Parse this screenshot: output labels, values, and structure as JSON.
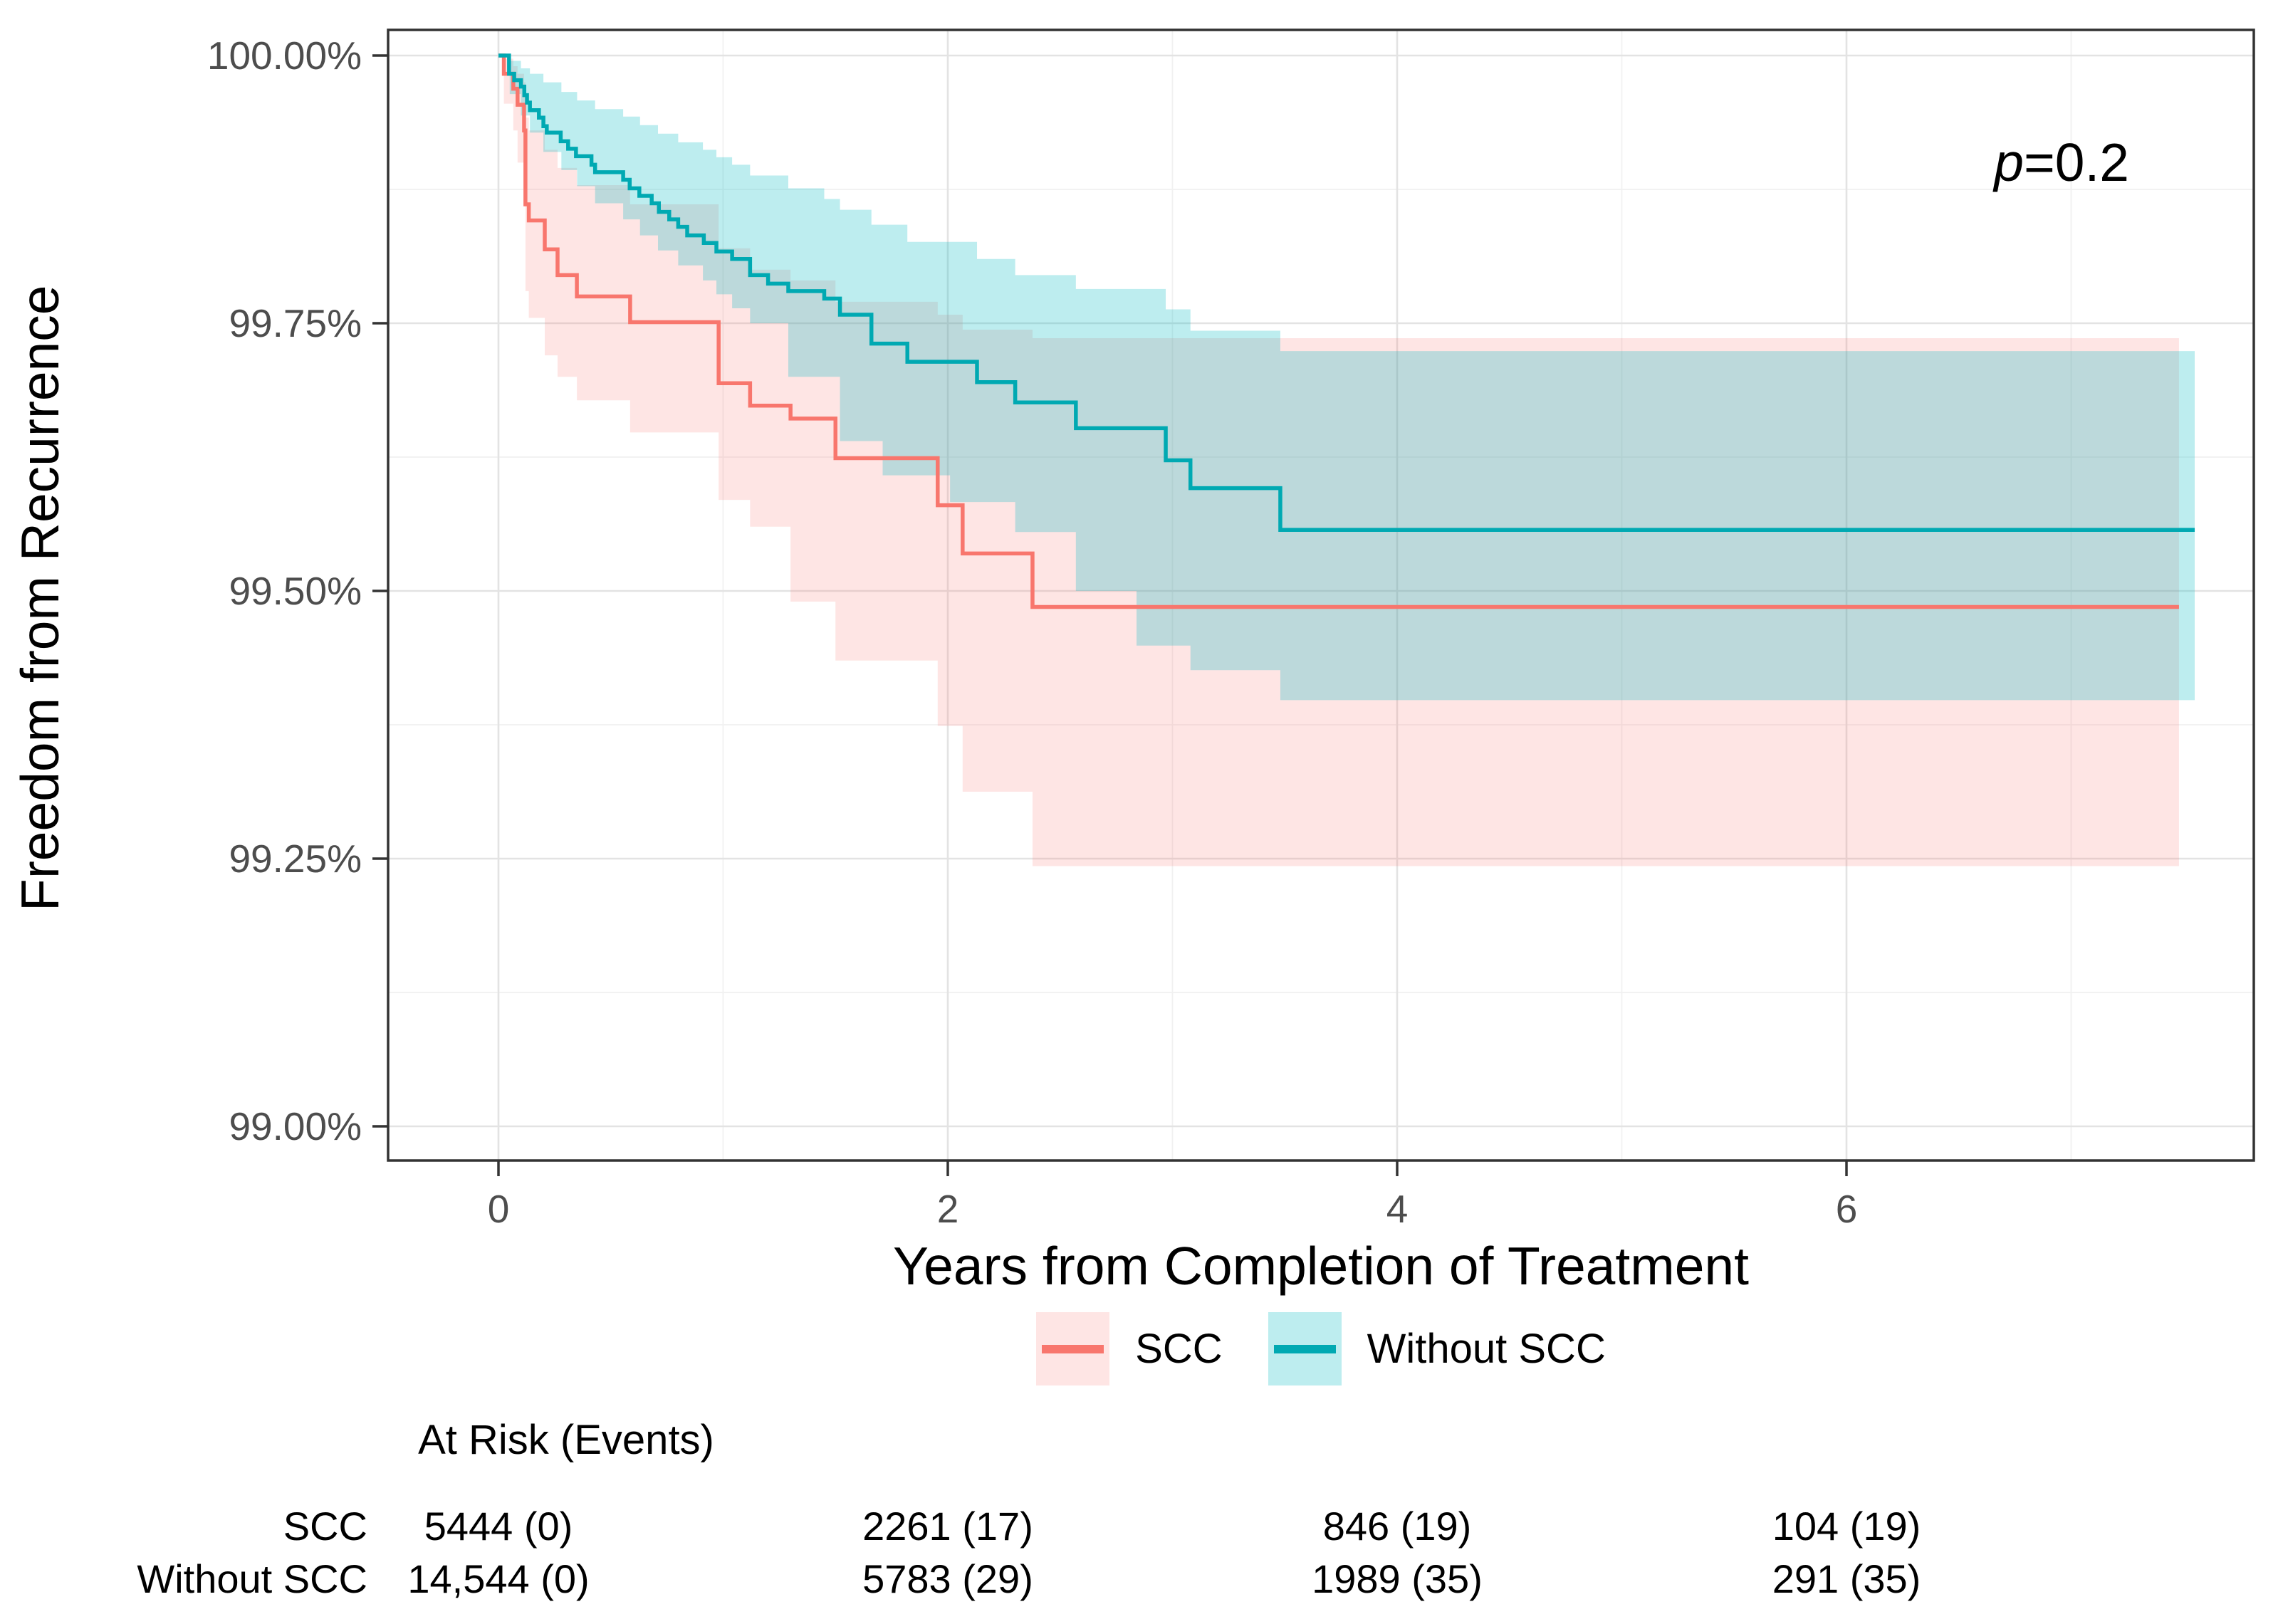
{
  "chart_data": {
    "type": "line",
    "variant": "kaplan-meier-step-with-ci",
    "title": "",
    "xlabel": "Years from Completion of Treatment",
    "ylabel": "Freedom from Recurrence",
    "grid": "on",
    "legend_position": "bottom-center",
    "x_axis": {
      "label": "Years from Completion of Treatment",
      "tick_values": [
        0,
        2,
        4,
        6
      ],
      "tick_labels": [
        "0",
        "2",
        "4",
        "6"
      ],
      "minor_tick_values": [
        1,
        3,
        5,
        7
      ],
      "range": [
        -0.49,
        7.81
      ]
    },
    "y_axis": {
      "label": "Freedom from Recurrence",
      "tick_values": [
        100.0,
        99.75,
        99.5,
        99.25,
        99.0
      ],
      "tick_labels": [
        "100.00%",
        "99.75%",
        "99.50%",
        "99.25%",
        "99.00%"
      ],
      "minor_tick_values": [
        99.875,
        99.625,
        99.375,
        99.125
      ],
      "range": [
        98.968,
        100.024
      ]
    },
    "annotation": {
      "symbol": "p",
      "text": "=0.2"
    },
    "colors": {
      "scc_line": "#F8766D",
      "scc_fill": "rgba(248,118,109,0.19)",
      "without_scc_line": "#00A9B2",
      "without_scc_fill": "rgba(0,185,192,0.26)",
      "grid_major": "#e3e3e3",
      "grid_minor": "#f1f1f1",
      "panel_border": "#333333",
      "tick_text": "#4d4d4d"
    },
    "series": [
      {
        "name": "SCC",
        "end_time": 7.48,
        "line": [
          [
            0,
            100
          ],
          [
            0.024,
            99.983
          ],
          [
            0.066,
            99.969
          ],
          [
            0.085,
            99.954
          ],
          [
            0.114,
            99.93
          ],
          [
            0.12,
            99.861
          ],
          [
            0.135,
            99.846
          ],
          [
            0.206,
            99.819
          ],
          [
            0.263,
            99.795
          ],
          [
            0.349,
            99.775
          ],
          [
            0.586,
            99.751
          ],
          [
            0.98,
            99.694
          ],
          [
            1.12,
            99.673
          ],
          [
            1.3,
            99.661
          ],
          [
            1.5,
            99.624
          ],
          [
            1.955,
            99.58
          ],
          [
            2.066,
            99.535
          ],
          [
            2.377,
            99.485
          ]
        ],
        "ci_upper": [
          [
            0,
            100
          ],
          [
            0.024,
            99.997
          ],
          [
            0.066,
            99.99
          ],
          [
            0.085,
            99.983
          ],
          [
            0.114,
            99.975
          ],
          [
            0.12,
            99.942
          ],
          [
            0.135,
            99.93
          ],
          [
            0.206,
            99.912
          ],
          [
            0.263,
            99.895
          ],
          [
            0.349,
            99.879
          ],
          [
            0.586,
            99.861
          ],
          [
            0.98,
            99.82
          ],
          [
            1.12,
            99.8
          ],
          [
            1.3,
            99.79
          ],
          [
            1.5,
            99.77
          ],
          [
            1.955,
            99.758
          ],
          [
            2.066,
            99.744
          ],
          [
            2.377,
            99.736
          ]
        ],
        "ci_lower": [
          [
            0,
            100
          ],
          [
            0.024,
            99.955
          ],
          [
            0.066,
            99.93
          ],
          [
            0.085,
            99.9
          ],
          [
            0.114,
            99.868
          ],
          [
            0.12,
            99.78
          ],
          [
            0.135,
            99.755
          ],
          [
            0.206,
            99.72
          ],
          [
            0.263,
            99.7
          ],
          [
            0.349,
            99.678
          ],
          [
            0.586,
            99.648
          ],
          [
            0.98,
            99.585
          ],
          [
            1.12,
            99.56
          ],
          [
            1.3,
            99.49
          ],
          [
            1.5,
            99.435
          ],
          [
            1.955,
            99.374
          ],
          [
            2.066,
            99.3125
          ],
          [
            2.377,
            99.243
          ]
        ]
      },
      {
        "name": "Without SCC",
        "end_time": 7.55,
        "line": [
          [
            0,
            100
          ],
          [
            0.047,
            99.983
          ],
          [
            0.07,
            99.977
          ],
          [
            0.1,
            99.971
          ],
          [
            0.115,
            99.963
          ],
          [
            0.127,
            99.956
          ],
          [
            0.14,
            99.949
          ],
          [
            0.18,
            99.942
          ],
          [
            0.2,
            99.934
          ],
          [
            0.215,
            99.928
          ],
          [
            0.277,
            99.92
          ],
          [
            0.31,
            99.913
          ],
          [
            0.345,
            99.906
          ],
          [
            0.414,
            99.898
          ],
          [
            0.43,
            99.891
          ],
          [
            0.555,
            99.884
          ],
          [
            0.584,
            99.876
          ],
          [
            0.627,
            99.869
          ],
          [
            0.682,
            99.862
          ],
          [
            0.714,
            99.854
          ],
          [
            0.76,
            99.847
          ],
          [
            0.8,
            99.84
          ],
          [
            0.84,
            99.832
          ],
          [
            0.914,
            99.825
          ],
          [
            0.97,
            99.817
          ],
          [
            1.04,
            99.81
          ],
          [
            1.12,
            99.795
          ],
          [
            1.2,
            99.787
          ],
          [
            1.29,
            99.78
          ],
          [
            1.45,
            99.773
          ],
          [
            1.52,
            99.758
          ],
          [
            1.66,
            99.731
          ],
          [
            1.82,
            99.714
          ],
          [
            2.13,
            99.695
          ],
          [
            2.3,
            99.676
          ],
          [
            2.57,
            99.652
          ],
          [
            2.97,
            99.622
          ],
          [
            3.08,
            99.596
          ],
          [
            3.48,
            99.557
          ]
        ],
        "ci_upper": [
          [
            0,
            100
          ],
          [
            0.05,
            99.995
          ],
          [
            0.1,
            99.988
          ],
          [
            0.14,
            99.983
          ],
          [
            0.2,
            99.975
          ],
          [
            0.28,
            99.966
          ],
          [
            0.35,
            99.958
          ],
          [
            0.43,
            99.95
          ],
          [
            0.555,
            99.943
          ],
          [
            0.63,
            99.935
          ],
          [
            0.71,
            99.927
          ],
          [
            0.8,
            99.919
          ],
          [
            0.91,
            99.912
          ],
          [
            0.97,
            99.905
          ],
          [
            1.04,
            99.898
          ],
          [
            1.12,
            99.888
          ],
          [
            1.29,
            99.876
          ],
          [
            1.45,
            99.866
          ],
          [
            1.52,
            99.856
          ],
          [
            1.66,
            99.842
          ],
          [
            1.82,
            99.826
          ],
          [
            2.13,
            99.81
          ],
          [
            2.3,
            99.795
          ],
          [
            2.57,
            99.782
          ],
          [
            2.97,
            99.763
          ],
          [
            3.08,
            99.743
          ],
          [
            3.48,
            99.724
          ]
        ],
        "ci_lower": [
          [
            0,
            100
          ],
          [
            0.05,
            99.964
          ],
          [
            0.1,
            99.944
          ],
          [
            0.14,
            99.928
          ],
          [
            0.2,
            99.91
          ],
          [
            0.28,
            99.893
          ],
          [
            0.35,
            99.878
          ],
          [
            0.43,
            99.862
          ],
          [
            0.555,
            99.847
          ],
          [
            0.63,
            99.832
          ],
          [
            0.71,
            99.818
          ],
          [
            0.8,
            99.804
          ],
          [
            0.91,
            99.79
          ],
          [
            0.97,
            99.777
          ],
          [
            1.04,
            99.764
          ],
          [
            1.12,
            99.75
          ],
          [
            1.29,
            99.7
          ],
          [
            1.52,
            99.64
          ],
          [
            1.71,
            99.608
          ],
          [
            2.01,
            99.583
          ],
          [
            2.3,
            99.555
          ],
          [
            2.57,
            99.5
          ],
          [
            2.84,
            99.449
          ],
          [
            3.08,
            99.426
          ],
          [
            3.48,
            99.398
          ]
        ]
      }
    ],
    "legend": [
      {
        "label": "SCC"
      },
      {
        "label": "Without SCC"
      }
    ],
    "risk_table": {
      "title": "At Risk (Events)",
      "time_points": [
        0,
        2,
        4,
        6
      ],
      "rows": [
        {
          "label": "SCC",
          "values": [
            "5444 (0)",
            "2261 (17)",
            "846 (19)",
            "104 (19)"
          ]
        },
        {
          "label": "Without SCC",
          "values": [
            "14,544 (0)",
            "5783 (29)",
            "1989 (35)",
            "291 (35)"
          ]
        }
      ]
    }
  }
}
